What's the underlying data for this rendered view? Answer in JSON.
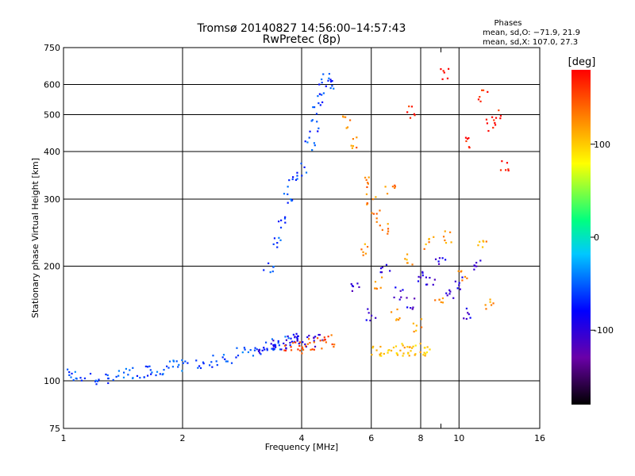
{
  "chart_data": {
    "type": "scatter",
    "title": "Tromsø 20140827 14:56:00–14:57:43",
    "subtitle": "RwPretec (8p)",
    "xlabel": "Frequency [MHz]",
    "ylabel": "Stationary phase Virtual Height [km]",
    "x_scale": "log",
    "y_scale": "log",
    "xlim": [
      1,
      16
    ],
    "ylim": [
      75,
      750
    ],
    "x_ticks": [
      1,
      2,
      4,
      6,
      8,
      10,
      16
    ],
    "x_minor_ticks": [
      9
    ],
    "y_ticks": [
      75,
      100,
      200,
      300,
      400,
      500,
      600,
      750
    ],
    "grid": true,
    "phases_box": {
      "title": "Phases",
      "line1": "mean, sd,O: −71.9, 21.9",
      "line2": "mean, sd,X: 107.0, 27.3"
    },
    "colorbar": {
      "label": "[deg]",
      "range": [
        -180,
        180
      ],
      "ticks": [
        100,
        0,
        -100
      ],
      "colors": [
        "#000000",
        "#6a00a8",
        "#0000ff",
        "#00c8ff",
        "#00ff80",
        "#ffff00",
        "#ff8000",
        "#ff0000"
      ]
    },
    "traces": [
      {
        "name": "o-trace-low",
        "phase": -55,
        "points": [
          [
            1.05,
            104
          ],
          [
            1.1,
            102
          ],
          [
            1.2,
            101
          ],
          [
            1.3,
            102
          ],
          [
            1.4,
            104
          ],
          [
            1.5,
            105
          ],
          [
            1.6,
            106
          ],
          [
            1.7,
            107
          ],
          [
            1.8,
            108
          ],
          [
            1.9,
            109
          ],
          [
            2.0,
            110
          ],
          [
            2.2,
            111
          ],
          [
            2.4,
            113
          ],
          [
            2.6,
            115
          ],
          [
            2.8,
            118
          ],
          [
            3.0,
            120
          ],
          [
            3.2,
            122
          ],
          [
            3.4,
            124
          ],
          [
            3.6,
            126
          ],
          [
            3.8,
            128
          ]
        ]
      },
      {
        "name": "o-trace-mid",
        "phase": -95,
        "points": [
          [
            3.2,
            122
          ],
          [
            3.4,
            124
          ],
          [
            3.6,
            126
          ],
          [
            3.8,
            128
          ],
          [
            4.0,
            128
          ],
          [
            4.2,
            128
          ],
          [
            4.4,
            130
          ]
        ]
      },
      {
        "name": "x-trace-low",
        "phase": 150,
        "points": [
          [
            3.7,
            122
          ],
          [
            3.9,
            123
          ],
          [
            4.1,
            124
          ],
          [
            4.3,
            125
          ],
          [
            4.5,
            126
          ],
          [
            4.7,
            127
          ]
        ]
      },
      {
        "name": "x-trace-high",
        "phase": 105,
        "points": [
          [
            6.2,
            120
          ],
          [
            6.5,
            120
          ],
          [
            6.8,
            121
          ],
          [
            7.1,
            121
          ],
          [
            7.4,
            120
          ],
          [
            7.7,
            120
          ],
          [
            8.0,
            121
          ],
          [
            8.3,
            121
          ]
        ]
      },
      {
        "name": "f-cluster-o",
        "phase": -60,
        "points": [
          [
            3.3,
            200
          ],
          [
            3.5,
            230
          ],
          [
            3.6,
            260
          ],
          [
            3.7,
            300
          ],
          [
            3.8,
            330
          ],
          [
            4.0,
            360
          ],
          [
            4.2,
            420
          ],
          [
            4.3,
            470
          ],
          [
            4.4,
            520
          ],
          [
            4.5,
            580
          ],
          [
            4.6,
            620
          ],
          [
            4.7,
            600
          ]
        ]
      },
      {
        "name": "f-cluster-x",
        "phase": 130,
        "points": [
          [
            5.2,
            480
          ],
          [
            5.5,
            420
          ],
          [
            5.8,
            330
          ],
          [
            6.0,
            300
          ],
          [
            6.2,
            270
          ],
          [
            6.5,
            250
          ],
          [
            6.7,
            320
          ]
        ]
      },
      {
        "name": "scatter-cloud",
        "phase": -100,
        "points": [
          [
            5.5,
            175
          ],
          [
            6,
            150
          ],
          [
            6.5,
            200
          ],
          [
            7,
            170
          ],
          [
            7.5,
            160
          ],
          [
            8,
            190
          ],
          [
            8.5,
            180
          ],
          [
            9,
            210
          ],
          [
            9.5,
            170
          ],
          [
            10,
            180
          ],
          [
            10.5,
            150
          ],
          [
            11,
            200
          ]
        ]
      },
      {
        "name": "scatter-cloud-x",
        "phase": 120,
        "points": [
          [
            5.8,
            220
          ],
          [
            6.3,
            180
          ],
          [
            6.9,
            150
          ],
          [
            7.4,
            210
          ],
          [
            7.9,
            140
          ],
          [
            8.4,
            230
          ],
          [
            8.9,
            160
          ],
          [
            9.4,
            240
          ],
          [
            10.2,
            190
          ],
          [
            11.5,
            230
          ],
          [
            12,
            160
          ]
        ]
      },
      {
        "name": "sparse-high",
        "phase": 170,
        "points": [
          [
            7.5,
            510
          ],
          [
            9.2,
            640
          ],
          [
            11.5,
            560
          ],
          [
            12,
            470
          ],
          [
            12.5,
            500
          ],
          [
            13,
            370
          ],
          [
            10.5,
            420
          ]
        ]
      }
    ]
  }
}
